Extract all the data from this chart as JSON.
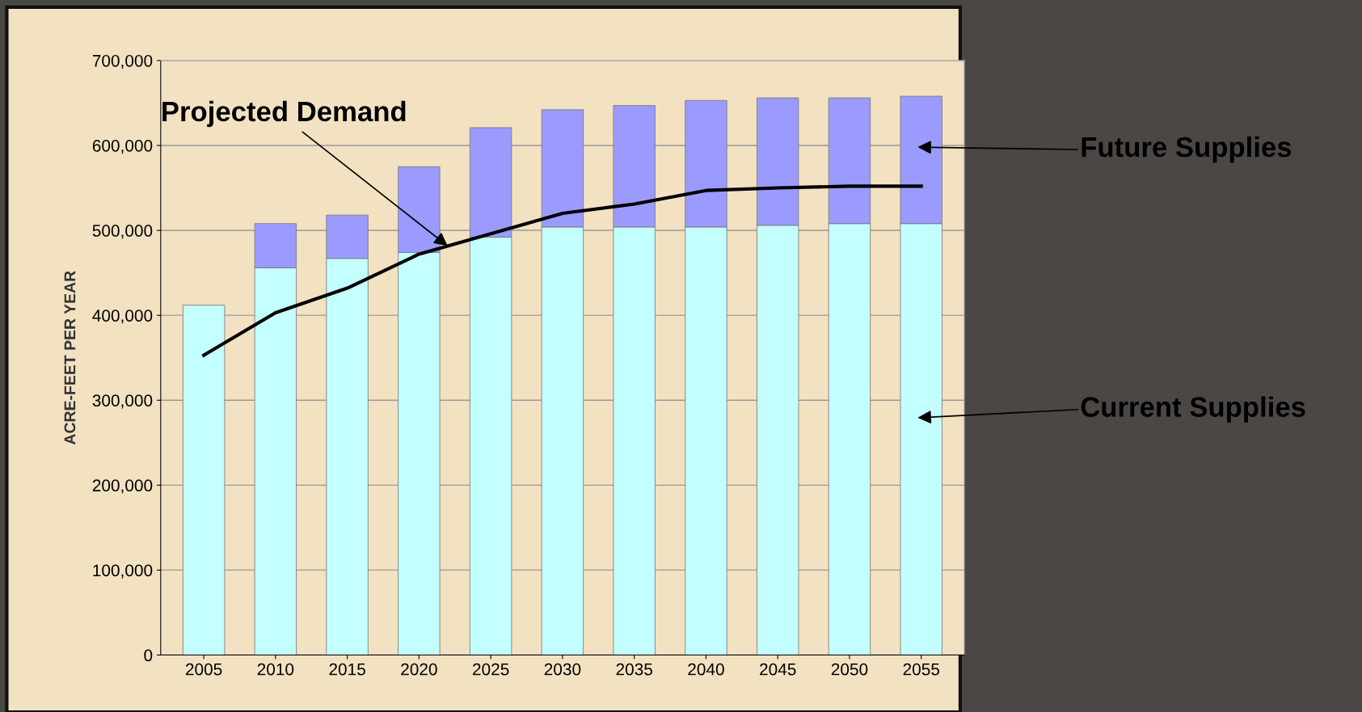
{
  "chart_data": {
    "type": "bar",
    "stacked": true,
    "ylabel": "ACRE-FEET PER YEAR",
    "categories": [
      "2005",
      "2010",
      "2015",
      "2020",
      "2025",
      "2030",
      "2035",
      "2040",
      "2045",
      "2050",
      "2055"
    ],
    "series": [
      {
        "name": "Current Supplies",
        "color": "#c4ffff",
        "values": [
          412000,
          456000,
          467000,
          474000,
          492000,
          504000,
          504000,
          504000,
          506000,
          508000,
          508000
        ]
      },
      {
        "name": "Future Supplies",
        "color": "#9b9bff",
        "values": [
          null,
          52000,
          51000,
          101000,
          129000,
          138000,
          143000,
          149000,
          150000,
          148000,
          150000
        ]
      },
      {
        "name": "Projected Demand",
        "type": "line",
        "color": "#000000",
        "values": [
          353000,
          403000,
          432000,
          472000,
          496000,
          520000,
          531000,
          547000,
          550000,
          552000,
          552000
        ]
      }
    ],
    "ylim": [
      0,
      700000
    ],
    "yticks": [
      {
        "value": 0,
        "label": "0"
      },
      {
        "value": 100000,
        "label": "100,000"
      },
      {
        "value": 200000,
        "label": "200,000"
      },
      {
        "value": 300000,
        "label": "300,000"
      },
      {
        "value": 400000,
        "label": "400,000"
      },
      {
        "value": 500000,
        "label": "500,000"
      },
      {
        "value": 600000,
        "label": "600,000"
      },
      {
        "value": 700000,
        "label": "700,000"
      }
    ],
    "grid": "y",
    "legend": false
  }
}
